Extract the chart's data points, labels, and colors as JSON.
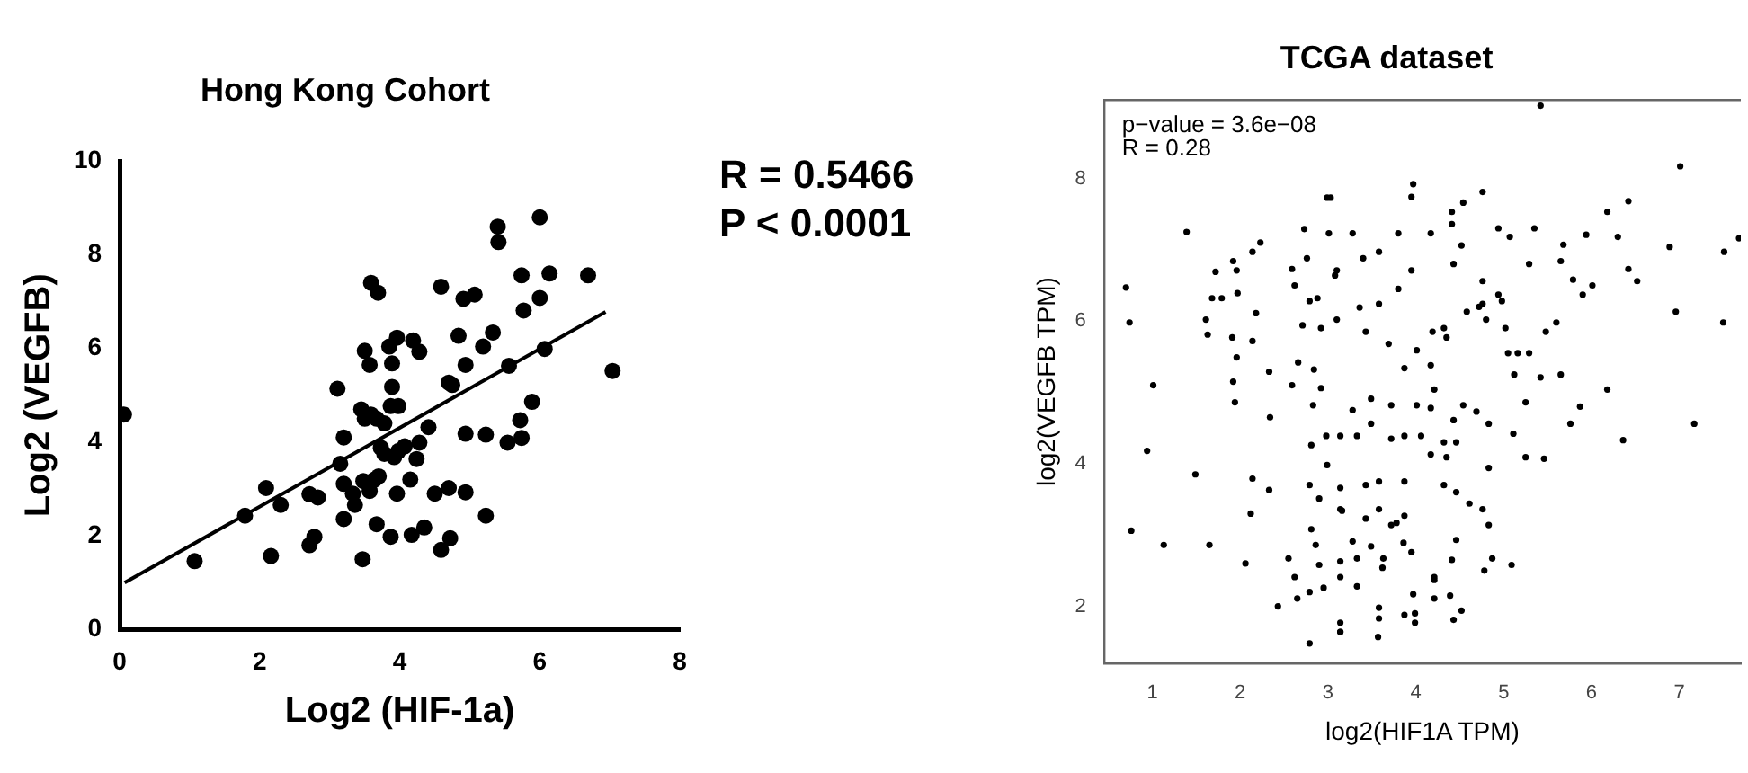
{
  "chart_data": [
    {
      "type": "scatter",
      "title": "Hong Kong Cohort",
      "xlabel": "Log2 (HIF-1a)",
      "ylabel": "Log2 (VEGFB)",
      "xlim": [
        0,
        8
      ],
      "xticks": [
        0,
        2,
        4,
        6,
        8
      ],
      "ylim": [
        0,
        10
      ],
      "yticks": [
        0,
        2,
        4,
        6,
        8,
        10
      ],
      "annotations": [
        "R = 0.5466",
        "P < 0.0001"
      ],
      "series": [
        {
          "color": "#000000",
          "marker": "circle",
          "x": [
            0.06,
            1.07,
            1.79,
            2.09,
            2.16,
            2.3,
            2.71,
            2.83,
            2.71,
            2.78,
            3.11,
            3.15,
            3.2,
            3.2,
            3.2,
            3.33,
            3.36,
            3.47,
            3.5,
            3.57,
            3.59,
            3.69,
            3.45,
            3.5,
            3.59,
            3.67,
            3.78,
            3.48,
            3.64,
            3.7,
            3.57,
            3.67,
            3.73,
            3.78,
            3.92,
            3.98,
            4.07,
            3.87,
            3.96,
            3.85,
            3.96,
            3.89,
            3.89,
            3.87,
            3.98,
            4.19,
            4.28,
            4.15,
            4.17,
            4.24,
            4.28,
            4.41,
            4.35,
            4.5,
            4.59,
            4.72,
            4.7,
            4.59,
            4.7,
            4.75,
            4.84,
            4.91,
            5.07,
            4.94,
            4.94,
            4.94,
            5.19,
            5.33,
            5.23,
            5.23,
            5.41,
            5.56,
            5.54,
            5.74,
            5.72,
            5.74,
            5.77,
            5.89,
            6.0,
            6.07,
            6.14,
            6.69,
            7.04,
            5.4,
            6.0
          ],
          "values": [
            4.59,
            1.46,
            2.43,
            3.02,
            1.57,
            2.66,
            2.89,
            2.82,
            1.8,
            1.98,
            5.14,
            3.54,
            4.1,
            3.11,
            2.36,
            2.9,
            2.66,
            1.5,
            5.95,
            5.65,
            7.4,
            7.19,
            4.7,
            4.5,
            4.59,
            4.5,
            4.4,
            3.17,
            3.2,
            3.27,
            2.96,
            2.25,
            3.88,
            3.75,
            3.68,
            3.81,
            3.91,
            1.98,
            2.9,
            6.04,
            6.23,
            5.68,
            5.18,
            4.77,
            4.77,
            6.17,
            5.93,
            3.2,
            2.02,
            3.64,
            3.99,
            4.32,
            2.18,
            2.9,
            1.7,
            1.95,
            3.02,
            7.32,
            5.27,
            5.22,
            6.27,
            7.06,
            7.15,
            5.65,
            4.18,
            2.93,
            6.04,
            6.34,
            4.16,
            2.43,
            8.27,
            5.63,
            3.99,
            4.09,
            4.47,
            7.56,
            6.81,
            4.86,
            7.08,
            5.99,
            7.6,
            7.56,
            5.52,
            8.6,
            8.8
          ]
        },
        {
          "type": "line",
          "color": "#000000",
          "x": [
            0.07,
            6.94
          ],
          "values": [
            1.0,
            6.78
          ]
        }
      ]
    },
    {
      "type": "scatter",
      "title": "TCGA dataset",
      "xlabel": "log2(HIF1A TPM)",
      "ylabel": "log2(VEGFB TPM)",
      "xlim": [
        0.45,
        7.7
      ],
      "xticks": [
        1,
        2,
        3,
        4,
        5,
        6,
        7
      ],
      "ylim": [
        1.2,
        9.1
      ],
      "yticks": [
        2,
        4,
        6,
        8
      ],
      "annotations": [
        "p−value = 3.6e−08",
        "R = 0.28"
      ],
      "series": [
        {
          "color": "#000000",
          "marker": "circle",
          "x": [
            0.7,
            0.74,
            1.01,
            0.94,
            0.76,
            1.13,
            1.39,
            1.49,
            1.65,
            1.72,
            1.68,
            1.79,
            1.61,
            1.63,
            1.92,
            1.97,
            1.96,
            1.91,
            1.96,
            1.92,
            1.94,
            2.23,
            2.14,
            2.18,
            2.14,
            2.33,
            2.34,
            2.14,
            2.12,
            2.33,
            2.06,
            2.43,
            2.59,
            2.62,
            2.73,
            2.76,
            2.79,
            2.88,
            2.71,
            2.66,
            2.59,
            2.84,
            2.83,
            2.92,
            2.81,
            2.98,
            2.99,
            2.79,
            2.9,
            2.81,
            2.86,
            2.55,
            2.62,
            2.65,
            2.79,
            2.95,
            2.9,
            2.79,
            2.99,
            3.01,
            2.92,
            3.08,
            3.14,
            3.16,
            5.42,
            7.01,
            3.97,
            3.95,
            4.76,
            4.54,
            4.41,
            4.41,
            3.03,
            3.28,
            3.8,
            4.17,
            4.94,
            5.35,
            5.94,
            6.18,
            6.42,
            6.3,
            6.89,
            7.51,
            7.68,
            5.68,
            5.65,
            6.42,
            6.52,
            5.79,
            6.01,
            5.9,
            5.29,
            5.07,
            4.52,
            4.43,
            4.76,
            4.94,
            4.72,
            4.58,
            4.32,
            4.35,
            4.19,
            4.01,
            4.17,
            3.87,
            3.69,
            3.8,
            3.58,
            3.36,
            3.1,
            3.1,
            3.4,
            3.58,
            3.95,
            3.43,
            4.76,
            4.8,
            4.98,
            5.05,
            5.16,
            5.29,
            5.12,
            5.42,
            5.6,
            5.48,
            5.02,
            5.65,
            6.18,
            6.96,
            7.5,
            7.17,
            6.36,
            5.87,
            5.76,
            5.46,
            5.25,
            5.11,
            4.83,
            4.69,
            4.54,
            4.43,
            4.17,
            4.21,
            4.01,
            3.72,
            3.49,
            3.28,
            3.49,
            3.33,
            3.14,
            3.72,
            3.87,
            4.06,
            4.32,
            4.46,
            4.17,
            4.35,
            4.83,
            3.87,
            3.58,
            3.43,
            3.14,
            4.32,
            4.46,
            4.61,
            4.76,
            4.83,
            3.43,
            3.72,
            3.78,
            3.87,
            3.58,
            3.14,
            3.28,
            3.49,
            3.86,
            3.63,
            3.14,
            3.33,
            3.14,
            3.33,
            3.62,
            3.95,
            4.46,
            4.87,
            5.09,
            4.78,
            4.21,
            4.41,
            3.97,
            4.21,
            4.39,
            4.52,
            4.43,
            3.99,
            3.87,
            3.58,
            3.58,
            3.57,
            3.14,
            3.14,
            3.99,
            4.21,
            5.25
          ],
          "values": [
            6.47,
            5.98,
            5.1,
            4.18,
            3.06,
            2.86,
            7.25,
            3.85,
            2.86,
            6.69,
            6.32,
            6.32,
            6.02,
            5.81,
            6.84,
            6.39,
            6.71,
            5.77,
            5.49,
            5.15,
            4.86,
            7.1,
            6.97,
            6.11,
            5.72,
            5.29,
            4.65,
            3.79,
            3.3,
            3.63,
            2.6,
            2.0,
            6.73,
            6.5,
            7.29,
            6.88,
            6.28,
            6.32,
            5.94,
            5.42,
            5.1,
            5.32,
            4.82,
            5.06,
            4.26,
            4.39,
            3.98,
            3.7,
            3.51,
            3.08,
            2.86,
            2.67,
            2.41,
            2.11,
            2.2,
            2.26,
            2.58,
            1.48,
            7.73,
            7.23,
            5.9,
            6.64,
            1.64,
            3.34,
            9.02,
            8.17,
            7.92,
            7.74,
            7.81,
            7.66,
            7.53,
            7.36,
            7.73,
            7.23,
            7.23,
            7.23,
            7.3,
            7.3,
            7.21,
            7.53,
            7.68,
            7.18,
            7.04,
            6.97,
            7.16,
            7.07,
            6.84,
            6.73,
            6.56,
            6.58,
            6.5,
            6.37,
            6.8,
            7.18,
            7.06,
            6.8,
            6.56,
            6.37,
            6.2,
            6.13,
            5.9,
            5.77,
            5.85,
            5.59,
            5.38,
            5.34,
            5.68,
            6.45,
            6.24,
            6.19,
            6.02,
            6.71,
            6.88,
            6.97,
            6.71,
            5.85,
            6.24,
            6.02,
            6.28,
            5.55,
            5.55,
            5.55,
            5.25,
            5.21,
            5.98,
            5.85,
            5.9,
            5.25,
            5.04,
            6.13,
            5.98,
            4.56,
            4.33,
            4.8,
            4.56,
            4.07,
            4.86,
            4.42,
            4.56,
            4.73,
            4.82,
            4.61,
            4.78,
            5.04,
            4.82,
            4.82,
            4.91,
            4.75,
            4.56,
            4.39,
            4.39,
            4.35,
            4.39,
            4.39,
            4.3,
            4.3,
            4.13,
            4.09,
            3.94,
            3.75,
            3.75,
            3.7,
            3.66,
            3.7,
            3.6,
            3.44,
            3.36,
            3.14,
            3.23,
            3.14,
            3.17,
            3.27,
            3.36,
            3.36,
            2.91,
            2.84,
            2.89,
            2.67,
            2.63,
            2.67,
            2.41,
            2.28,
            2.54,
            2.76,
            2.93,
            2.67,
            2.58,
            2.5,
            2.41,
            2.65,
            2.17,
            2.11,
            2.15,
            1.94,
            1.81,
            1.9,
            1.88,
            1.98,
            1.83,
            1.57,
            1.77,
            1.64,
            1.77,
            2.37,
            4.09
          ]
        }
      ]
    }
  ]
}
